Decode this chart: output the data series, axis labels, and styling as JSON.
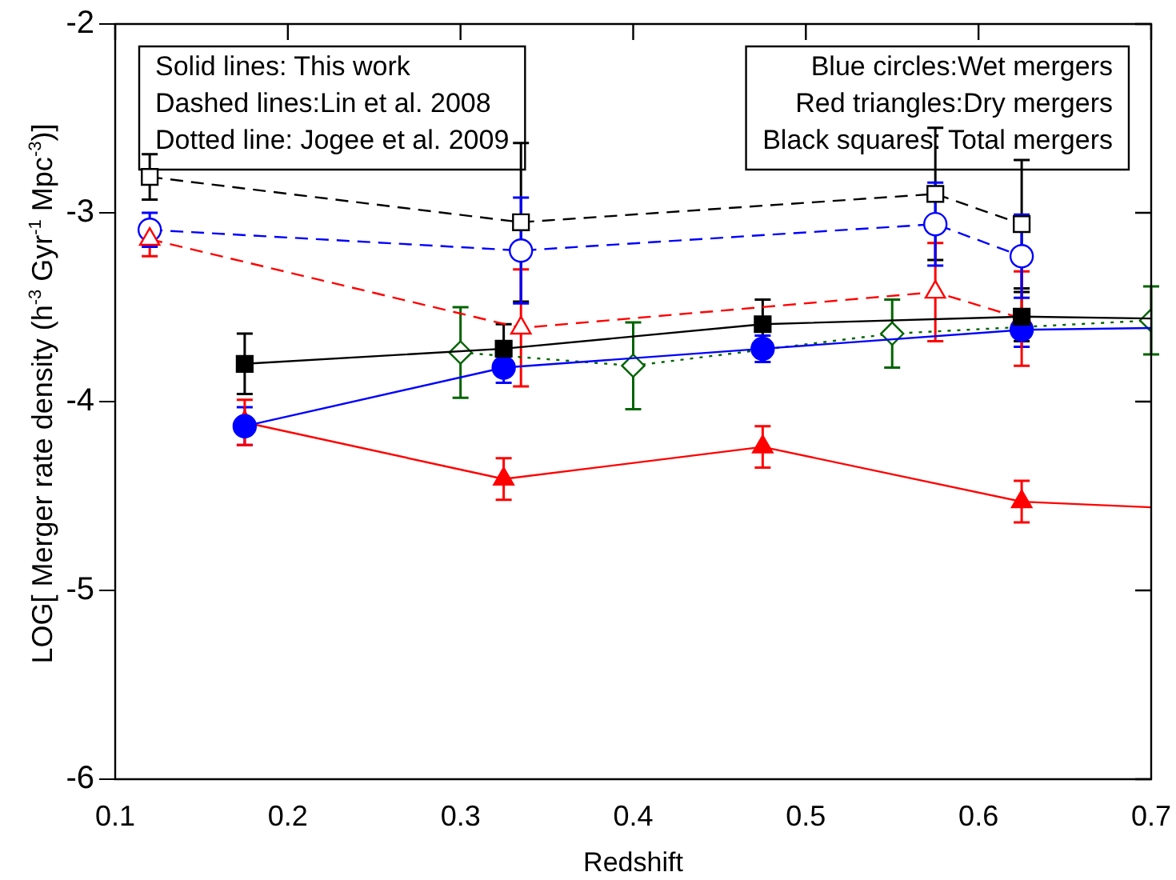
{
  "chart_data": {
    "type": "line",
    "xlabel": "Redshift",
    "ylabel": "LOG[ Merger rate density (h$^{-3}$ Gyr$^{-1}$ Mpc$^{-3}$)]",
    "xlim": [
      0.1,
      0.7
    ],
    "xticks": [
      0.1,
      0.2,
      0.3,
      0.4,
      0.5,
      0.6,
      0.7
    ],
    "ylim": [
      -6,
      -2
    ],
    "yticks": [
      -6,
      -5,
      -4,
      -3,
      -2
    ],
    "grid": false,
    "legend": false,
    "annotations": [
      "Solid lines: This work\nDashed lines:Lin et al. 2008\nDotted line: Jogee et al. 2009",
      "Blue circles:Wet mergers\nRed triangles:Dry mergers\nBlack squares: Total mergers"
    ],
    "series": [
      {
        "color": "#000000",
        "marker": "square",
        "line_style": "solid",
        "x": [
          0.175,
          0.325,
          0.475,
          0.625,
          0.7
        ],
        "values": [
          -3.8,
          -3.72,
          -3.59,
          -3.55,
          -3.56
        ],
        "errors": [
          0.16,
          0.13,
          0.13,
          0.13,
          null
        ]
      },
      {
        "color": "#0000ff",
        "marker": "circle",
        "line_style": "solid",
        "x": [
          0.175,
          0.325,
          0.475,
          0.625,
          0.7
        ],
        "values": [
          -4.13,
          -3.82,
          -3.72,
          -3.62,
          -3.61
        ],
        "errors": [
          0.1,
          0.08,
          0.07,
          0.09,
          null
        ]
      },
      {
        "color": "#ff0000",
        "marker": "triangle",
        "line_style": "solid",
        "x": [
          0.175,
          0.325,
          0.475,
          0.625,
          0.7
        ],
        "values": [
          -4.11,
          -4.41,
          -4.24,
          -4.53,
          -4.56
        ],
        "errors": [
          0.12,
          0.11,
          0.11,
          0.11,
          null
        ]
      },
      {
        "color": "#000000",
        "marker": "square",
        "line_style": "dashed",
        "x": [
          0.12,
          0.335,
          0.575,
          0.625
        ],
        "values": [
          -2.81,
          -3.05,
          -2.9,
          -3.06
        ],
        "errors": [
          0.12,
          0.42,
          0.35,
          0.34
        ]
      },
      {
        "color": "#ff0000",
        "marker": "triangle",
        "line_style": "dashed",
        "x": [
          0.12,
          0.335,
          0.575,
          0.625
        ],
        "values": [
          -3.14,
          -3.61,
          -3.42,
          -3.56
        ],
        "errors": [
          0.09,
          0.31,
          0.26,
          0.25
        ]
      },
      {
        "color": "#0000ff",
        "marker": "circle",
        "line_style": "dashed",
        "x": [
          0.12,
          0.335,
          0.575,
          0.625
        ],
        "values": [
          -3.09,
          -3.2,
          -3.06,
          -3.23
        ],
        "errors": [
          0.09,
          0.28,
          0.22,
          0.22
        ]
      },
      {
        "color": "#006400",
        "marker": "diamond",
        "line_style": "dotted",
        "x": [
          0.3,
          0.4,
          0.55,
          0.7
        ],
        "values": [
          -3.74,
          -3.81,
          -3.64,
          -3.57
        ],
        "errors": [
          0.24,
          0.23,
          0.18,
          0.18
        ]
      }
    ]
  }
}
